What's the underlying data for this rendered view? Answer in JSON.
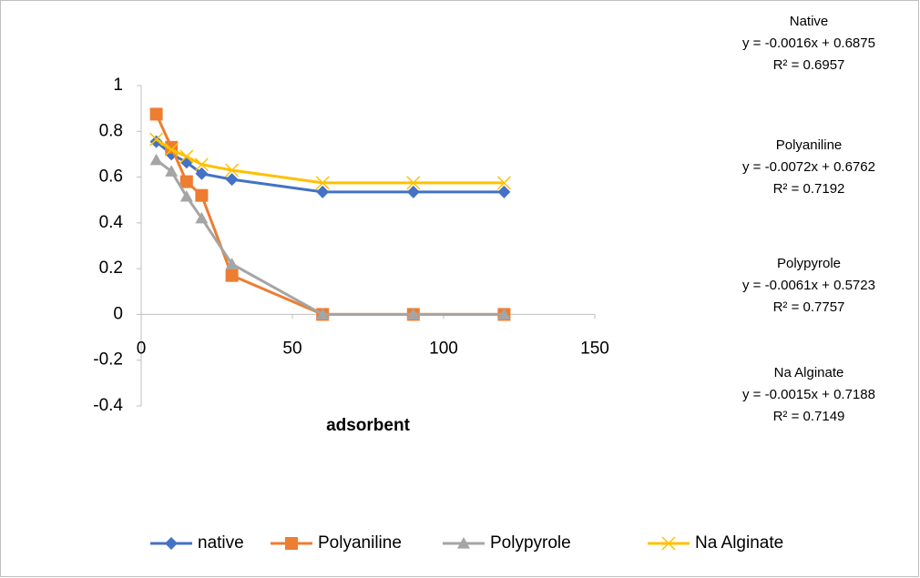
{
  "chart_data": {
    "type": "line",
    "x_label": "adsorbent",
    "x": [
      5,
      10,
      15,
      20,
      30,
      60,
      90,
      120
    ],
    "series": [
      {
        "name": "native",
        "color": "#4472c4",
        "marker": "diamond",
        "values": [
          0.755,
          0.7,
          0.665,
          0.615,
          0.59,
          0.535,
          0.535,
          0.535
        ]
      },
      {
        "name": "Polyaniline",
        "color": "#ed7d31",
        "marker": "square",
        "values": [
          0.875,
          0.73,
          0.58,
          0.52,
          0.17,
          0,
          0,
          0
        ]
      },
      {
        "name": "Polypyrole",
        "color": "#a5a5a5",
        "marker": "triangle",
        "values": [
          0.675,
          0.625,
          0.515,
          0.42,
          0.22,
          0,
          0,
          0
        ]
      },
      {
        "name": "Na Alginate",
        "color": "#ffc000",
        "marker": "x",
        "values": [
          0.765,
          0.72,
          0.69,
          0.655,
          0.63,
          0.575,
          0.575,
          0.575
        ]
      }
    ],
    "xlim": [
      0,
      150
    ],
    "xticks": [
      0,
      50,
      100,
      150
    ],
    "ylim": [
      -0.4,
      1
    ],
    "yticks": [
      -0.4,
      -0.2,
      0,
      0.2,
      0.4,
      0.6,
      0.8,
      1
    ],
    "legend": "bottom",
    "annotations": [
      {
        "name": "Native",
        "equation": "y = -0.0016x + 0.6875",
        "r2": "R² = 0.6957"
      },
      {
        "name": "Polyaniline",
        "equation": "y = -0.0072x + 0.6762",
        "r2": "R² = 0.7192"
      },
      {
        "name": "Polypyrole",
        "equation": "y = -0.0061x + 0.5723",
        "r2": "R² = 0.7757"
      },
      {
        "name": "Na Alginate",
        "equation": "y = -0.0015x + 0.7188",
        "r2": "R² = 0.7149"
      }
    ]
  }
}
